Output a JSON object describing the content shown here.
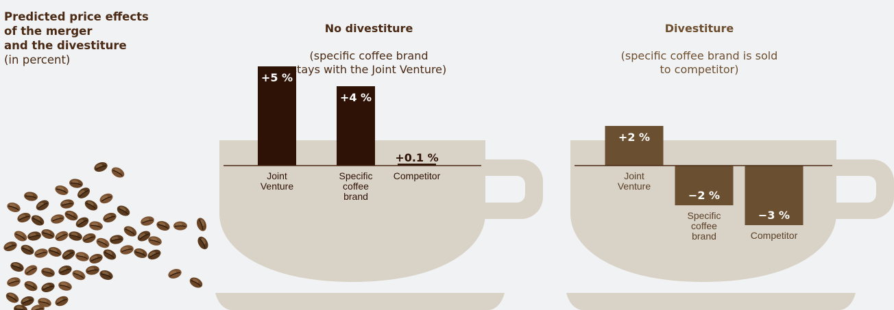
{
  "intro": {
    "title_lines": [
      "Predicted price effects",
      "of the merger",
      "and the divestiture"
    ],
    "unit": "(in percent)"
  },
  "colors": {
    "background": "#f1f2f3",
    "cup": "#d9d2c6",
    "bar_no_divestiture": "#2e1205",
    "bar_divestiture": "#6b4f31",
    "baseline": "#4a2a14"
  },
  "chart_data": [
    {
      "type": "bar",
      "title": "No divestiture",
      "subtitle": "(specific coffee brand\nstays with the Joint Venture)",
      "categories": [
        "Joint\nVenture",
        "Specific\ncoffee\nbrand",
        "Competitor"
      ],
      "values": [
        5,
        4,
        0.1
      ],
      "value_labels": [
        "+5 %",
        "+4 %",
        "+0.1 %"
      ]
    },
    {
      "type": "bar",
      "title": "Divestiture",
      "subtitle": "(specific coffee brand is sold\nto competitor)",
      "categories": [
        "Joint\nVenture",
        "Specific\ncoffee\nbrand",
        "Competitor"
      ],
      "values": [
        2,
        -2,
        -3
      ],
      "value_labels": [
        "+2 %",
        "−2 %",
        "−3 %"
      ]
    }
  ]
}
